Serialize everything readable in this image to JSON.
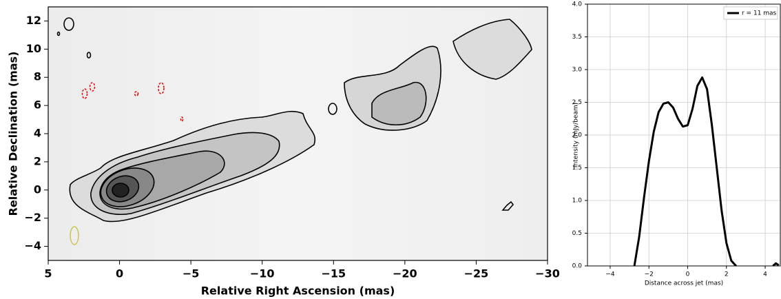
{
  "chart_data": [
    {
      "type": "image",
      "xlabel": "Relative Right Ascension (mas)",
      "ylabel": "Relative Declination (mas)",
      "xlim": [
        5,
        -30
      ],
      "ylim": [
        -5,
        13
      ],
      "xticks": [
        5,
        0,
        {
          "value": -5,
          "label": "−5"
        },
        {
          "value": -10,
          "label": "−10"
        },
        {
          "value": -15,
          "label": "−15"
        },
        {
          "value": -20,
          "label": "−20"
        },
        {
          "value": -25,
          "label": "−25"
        },
        {
          "value": -30,
          "label": "−30"
        }
      ],
      "yticks": [
        {
          "value": -4,
          "label": "−4"
        },
        {
          "value": -2,
          "label": "−2"
        },
        0,
        2,
        4,
        6,
        8,
        10,
        12
      ],
      "grid": false
    },
    {
      "type": "line",
      "xlabel": "Distance across jet (mas)",
      "ylabel": "Intensity (mJy/beam)",
      "xlim": [
        -5.17,
        4.78
      ],
      "ylim": [
        0,
        4
      ],
      "xticks": [
        {
          "value": -4,
          "label": "−4"
        },
        {
          "value": -2,
          "label": "−2"
        },
        0,
        2,
        4
      ],
      "yticks": [
        {
          "value": 0,
          "label": "0.0"
        },
        {
          "value": 0.5,
          "label": "0.5"
        },
        {
          "value": 1,
          "label": "1.0"
        },
        {
          "value": 1.5,
          "label": "1.5"
        },
        {
          "value": 2,
          "label": "2.0"
        },
        {
          "value": 2.5,
          "label": "2.5"
        },
        {
          "value": 3,
          "label": "3.0"
        },
        {
          "value": 3.5,
          "label": "3.5"
        },
        {
          "value": 4,
          "label": "4.0"
        }
      ],
      "grid": true,
      "legend": "upper right",
      "series": [
        {
          "name": "r = 11 mas",
          "color": "#000000",
          "x": [
            -2.75,
            -2.5,
            -2.25,
            -2,
            -1.75,
            -1.5,
            -1.25,
            -1,
            -0.75,
            -0.5,
            -0.25,
            0,
            0.25,
            0.5,
            0.75,
            1,
            1.25,
            1.5,
            1.75,
            2,
            2.25,
            2.5,
            3.5,
            4.4,
            4.55,
            4.7
          ],
          "y": [
            0,
            0.45,
            1.05,
            1.6,
            2.05,
            2.35,
            2.48,
            2.5,
            2.42,
            2.25,
            2.13,
            2.15,
            2.4,
            2.75,
            2.88,
            2.7,
            2.15,
            1.5,
            0.85,
            0.35,
            0.08,
            0,
            null,
            0,
            0.04,
            0.01
          ]
        }
      ]
    }
  ]
}
